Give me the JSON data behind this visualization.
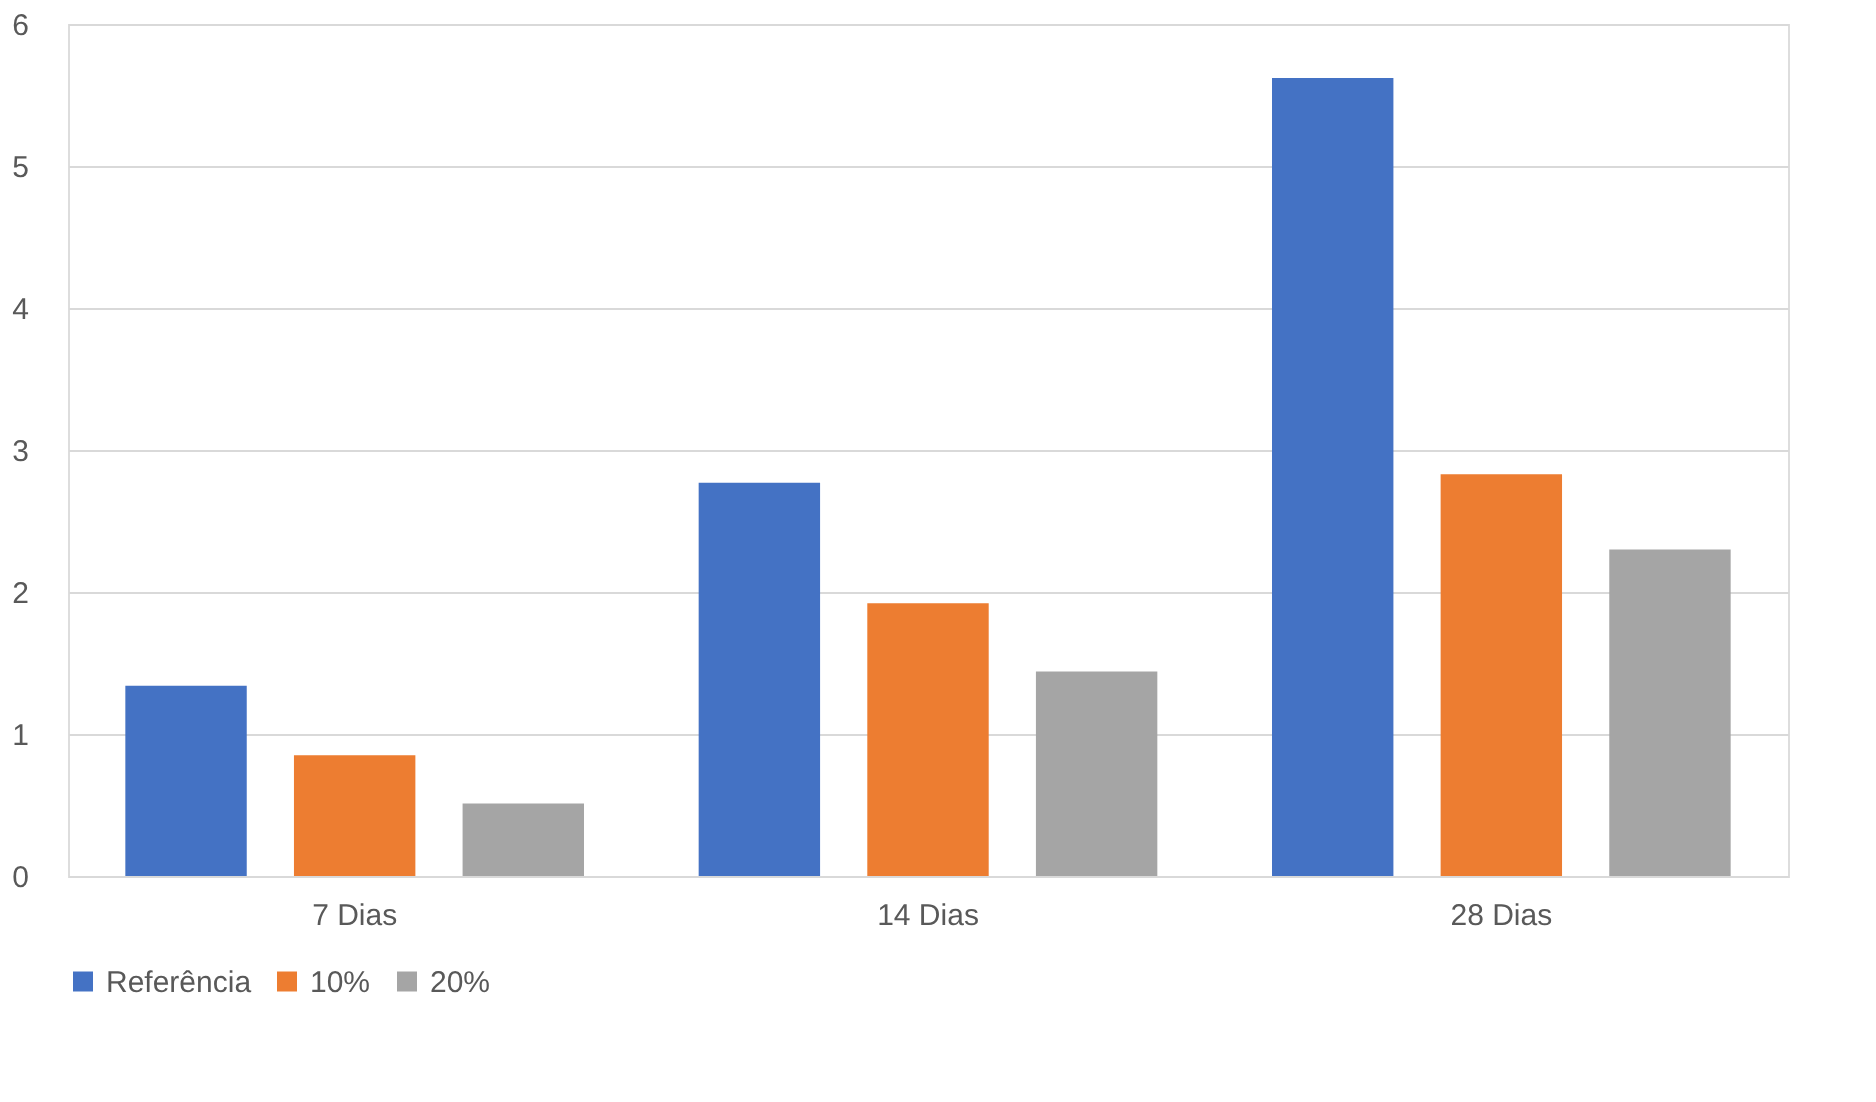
{
  "chart_data": {
    "type": "bar",
    "categories": [
      "7 Dias",
      "14 Dias",
      "28 Dias"
    ],
    "series": [
      {
        "name": "Referência",
        "color": "#4472c4",
        "values": [
          1.34,
          2.77,
          5.62
        ]
      },
      {
        "name": "10%",
        "color": "#ed7d31",
        "values": [
          0.85,
          1.92,
          2.83
        ]
      },
      {
        "name": "20%",
        "color": "#a5a5a5",
        "values": [
          0.51,
          1.44,
          2.3
        ]
      }
    ],
    "ylim": [
      0,
      6
    ],
    "yticks": [
      0,
      1,
      2,
      3,
      4,
      5,
      6
    ],
    "grid": "y",
    "legend": "bottom"
  }
}
